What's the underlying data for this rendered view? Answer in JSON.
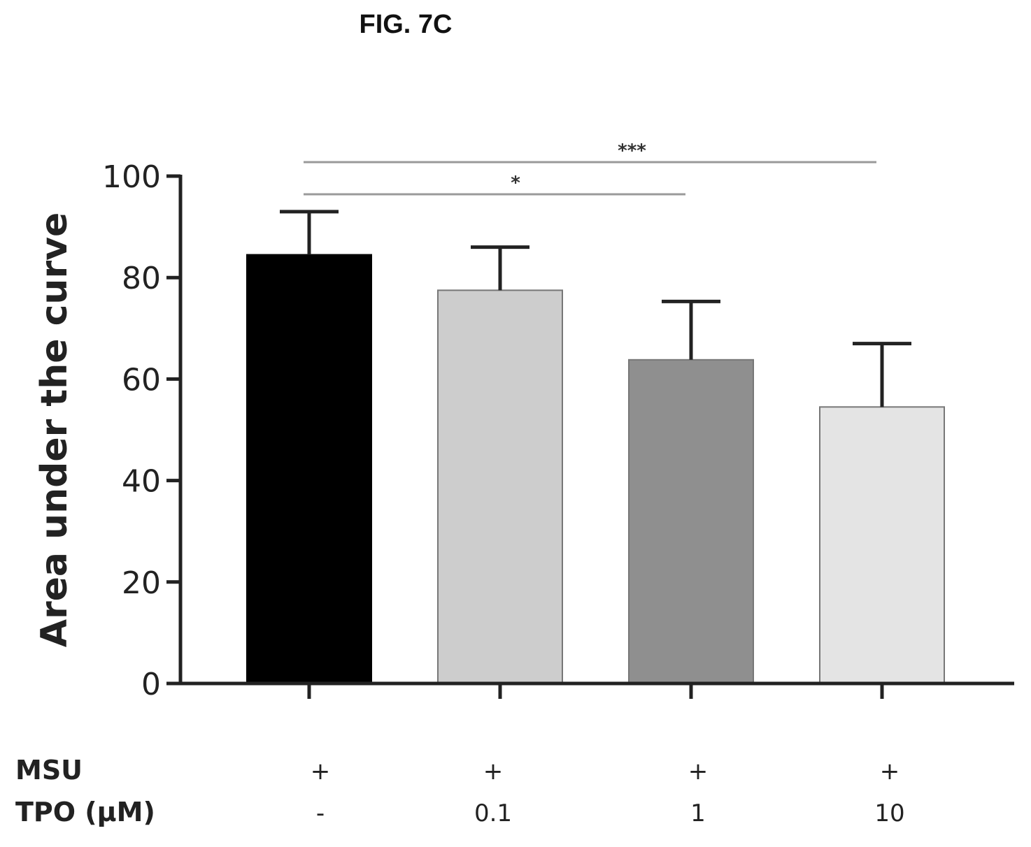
{
  "figure_label": "FIG. 7C",
  "chart_data": {
    "type": "bar",
    "title": "",
    "xlabel": "",
    "ylabel": "Area under the curve",
    "ylim": [
      0,
      100
    ],
    "yticks": [
      0,
      20,
      40,
      60,
      80,
      100
    ],
    "categories": [
      "-",
      "0.1",
      "1",
      "10"
    ],
    "values": [
      84.5,
      77.5,
      63.8,
      54.5
    ],
    "errors": [
      8.5,
      8.5,
      11.5,
      12.5
    ],
    "bar_colors": [
      "#000000",
      "#cdcdcd",
      "#8f8f8f",
      "#e4e4e4"
    ],
    "treatment_rows": [
      {
        "label": "MSU",
        "values": [
          "+",
          "+",
          "+",
          "+"
        ]
      },
      {
        "label": "TPO (μM)",
        "values": [
          "-",
          "0.1",
          "1",
          "10"
        ]
      }
    ],
    "significance": [
      {
        "label": "***",
        "from_index": 0,
        "to_index": 3
      },
      {
        "label": "*",
        "from_index": 0,
        "to_index": 2
      }
    ],
    "grid": false,
    "legend": "none"
  }
}
